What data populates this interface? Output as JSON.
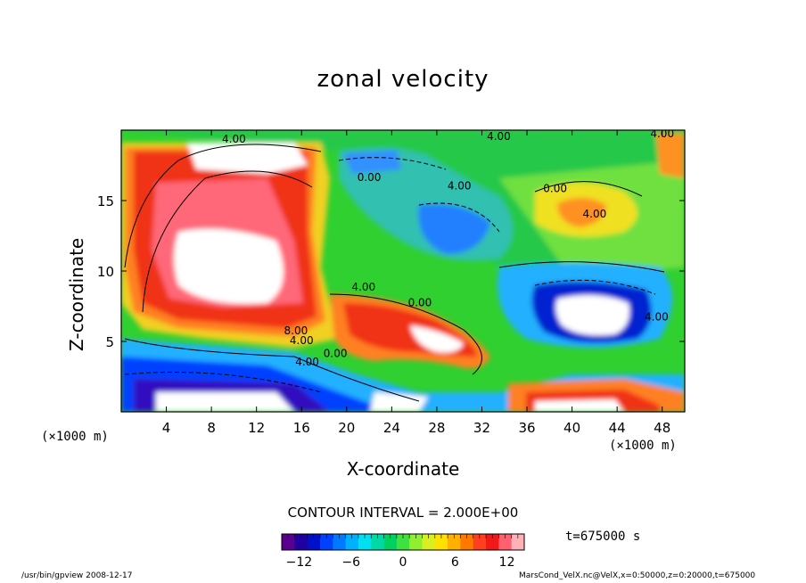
{
  "chart_data": {
    "type": "heatmap",
    "title": "zonal velocity",
    "xlabel": "X-coordinate",
    "ylabel": "Z-coordinate",
    "x_unit_label": "(×1000 m)",
    "y_unit_label": "(×1000 m)",
    "xlim": [
      0,
      50
    ],
    "ylim": [
      0,
      20
    ],
    "x_ticks": [
      4,
      8,
      12,
      16,
      20,
      24,
      28,
      32,
      36,
      40,
      44,
      48
    ],
    "y_ticks": [
      5,
      10,
      15
    ],
    "contour_interval_label": "CONTOUR INTERVAL = 2.000E+00",
    "contour_labels": [
      {
        "text": "4.00",
        "x": 10.0,
        "y": 19.1
      },
      {
        "text": "4.00",
        "x": 33.5,
        "y": 19.3
      },
      {
        "text": "4.00",
        "x": 48.0,
        "y": 19.5
      },
      {
        "text": "0.00",
        "x": 22.0,
        "y": 16.4
      },
      {
        "text": "4.00",
        "x": 30.0,
        "y": 15.8
      },
      {
        "text": "0.00",
        "x": 38.5,
        "y": 15.6
      },
      {
        "text": "4.00",
        "x": 42.0,
        "y": 13.8
      },
      {
        "text": "4.00",
        "x": 21.5,
        "y": 8.6
      },
      {
        "text": "0.00",
        "x": 26.5,
        "y": 7.5
      },
      {
        "text": "8.00",
        "x": 15.5,
        "y": 5.5
      },
      {
        "text": "4.00",
        "x": 16.0,
        "y": 4.8
      },
      {
        "text": "0.00",
        "x": 19.0,
        "y": 3.9
      },
      {
        "text": "4.00",
        "x": 16.5,
        "y": 3.3
      },
      {
        "text": "4.00",
        "x": 47.5,
        "y": 6.5
      }
    ],
    "colorbar": {
      "range": [
        -14,
        14
      ],
      "tick_values": [
        -12,
        -6,
        0,
        6,
        12
      ],
      "tick_labels": [
        "−12",
        "−6",
        "0",
        "6",
        "12"
      ],
      "colors": [
        "#5a0090",
        "#2000a0",
        "#0010c8",
        "#0040ff",
        "#0078ff",
        "#00b0ff",
        "#00e0f0",
        "#00d8a8",
        "#00d060",
        "#40e040",
        "#90f030",
        "#d8f020",
        "#ffe000",
        "#ffb000",
        "#ff7800",
        "#ff4020",
        "#f01818",
        "#ff6070",
        "#ffb0b8"
      ]
    },
    "time_label": "t=675000 s"
  },
  "footer": {
    "left": "/usr/bin/gpview   2008-12-17",
    "right": "MarsCond_VelX.nc@VelX,x=0:50000,z=0:20000,t=675000"
  }
}
